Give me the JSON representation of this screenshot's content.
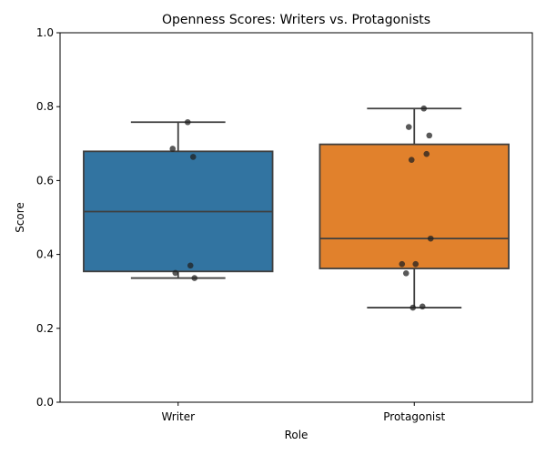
{
  "chart_data": {
    "type": "box",
    "title": "Openness Scores: Writers vs. Protagonists",
    "xlabel": "Role",
    "ylabel": "Score",
    "ylim": [
      0,
      1.0
    ],
    "yticks": [
      0.0,
      0.2,
      0.4,
      0.6,
      0.8,
      1.0
    ],
    "ytick_labels": [
      "0.0",
      "0.2",
      "0.4",
      "0.6",
      "0.8",
      "1.0"
    ],
    "grid": false,
    "categories": [
      "Writer",
      "Protagonist"
    ],
    "boxes": [
      {
        "category": "Writer",
        "color": "#3274a1",
        "whisker_low": 0.336,
        "q1": 0.354,
        "median": 0.516,
        "q3": 0.679,
        "whisker_high": 0.758,
        "points": [
          0.758,
          0.686,
          0.664,
          0.37,
          0.35,
          0.336
        ]
      },
      {
        "category": "Protagonist",
        "color": "#e1812c",
        "whisker_low": 0.256,
        "q1": 0.362,
        "median": 0.443,
        "q3": 0.698,
        "whisker_high": 0.795,
        "points": [
          0.795,
          0.745,
          0.722,
          0.672,
          0.656,
          0.443,
          0.374,
          0.374,
          0.349,
          0.259,
          0.256
        ]
      }
    ]
  }
}
